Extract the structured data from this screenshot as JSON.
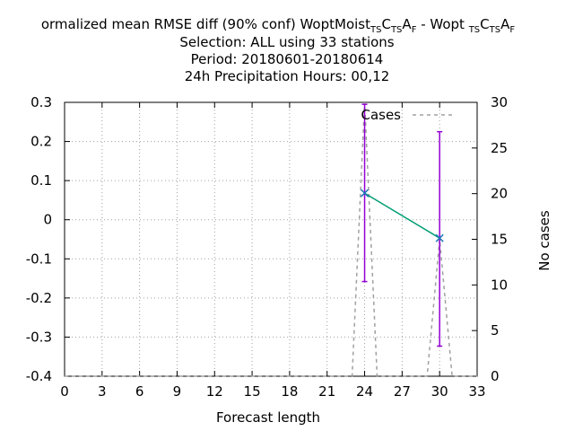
{
  "title": {
    "line1_prefix": "ormalized mean RMSE diff (90% conf) WoptMoist",
    "exp1_subs": [
      "TS",
      "C",
      "TS",
      "A",
      "F"
    ],
    "exp1_letters": [
      "",
      "C",
      "",
      "A",
      ""
    ],
    "separator": " - Wopt ",
    "exp2_subs": [
      "TS",
      "C",
      "TS",
      "A",
      "F"
    ],
    "exp2_letters": [
      "",
      "C",
      "",
      "A",
      ""
    ],
    "line2": "Selection: ALL using    33 stations",
    "line3": "Period: 20180601-20180614",
    "line4": "24h Precipitation   Hours:  00,12"
  },
  "chart_data": {
    "type": "line",
    "xlabel": "Forecast length",
    "ylabel": "",
    "y2label": "No cases",
    "xlim": [
      0,
      33
    ],
    "ylim": [
      -0.4,
      0.3
    ],
    "y2lim": [
      0,
      30
    ],
    "xticks": [
      0,
      3,
      6,
      9,
      12,
      15,
      18,
      21,
      24,
      27,
      30,
      33
    ],
    "yticks": [
      -0.4,
      -0.3,
      -0.2,
      -0.1,
      0,
      0.1,
      0.2,
      0.3
    ],
    "ytick_labels": [
      "-0.4",
      "-0.3",
      "-0.2",
      "-0.1",
      "0",
      "0.1",
      "0.2",
      "0.3"
    ],
    "y2ticks": [
      0,
      5,
      10,
      15,
      20,
      25,
      30
    ],
    "grid": true,
    "legend": {
      "position": "top-right",
      "entries": [
        {
          "name": "Cases",
          "style": "dashed",
          "color": "#a0a0a0"
        }
      ]
    },
    "series": [
      {
        "kind": "errorbar-line",
        "color": "#009e73",
        "errorbar_color": "#9400d3",
        "points": [
          {
            "x": 24,
            "y": 0.068,
            "low": -0.158,
            "high": 0.295
          },
          {
            "x": 30,
            "y": -0.047,
            "low": -0.323,
            "high": 0.225
          }
        ]
      },
      {
        "name": "Cases",
        "kind": "dashed-line",
        "axis": "y2",
        "color": "#a0a0a0",
        "x": [
          0,
          23,
          24,
          25,
          29,
          30,
          31,
          33
        ],
        "y": [
          0,
          0,
          30,
          0,
          0,
          15,
          0,
          0
        ]
      }
    ]
  }
}
